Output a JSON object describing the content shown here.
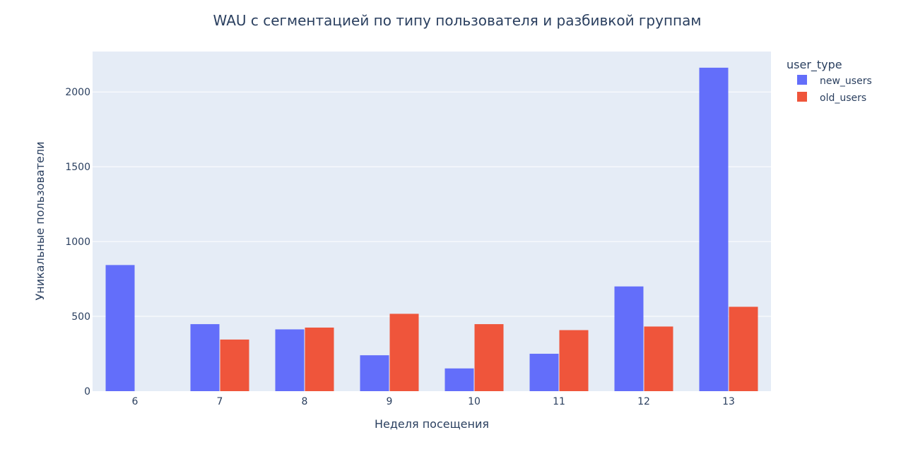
{
  "chart_data": {
    "type": "bar",
    "title": "WAU с сегментацией по типу пользователя и разбивкой группам",
    "xlabel": "Неделя посещения",
    "ylabel": "Уникальные пользователи",
    "categories": [
      "6",
      "7",
      "8",
      "9",
      "10",
      "11",
      "12",
      "13"
    ],
    "ylim": [
      0,
      2270
    ],
    "yticks": [
      0,
      500,
      1000,
      1500,
      2000
    ],
    "grid": true,
    "legend": {
      "title": "user_type",
      "placement": "top-right-outside"
    },
    "series": [
      {
        "name": "new_users",
        "color": "#636efa",
        "values": [
          843,
          448,
          413,
          240,
          152,
          250,
          700,
          2162
        ]
      },
      {
        "name": "old_users",
        "color": "#ef553b",
        "values": [
          0,
          345,
          425,
          517,
          448,
          408,
          432,
          564
        ]
      }
    ]
  }
}
